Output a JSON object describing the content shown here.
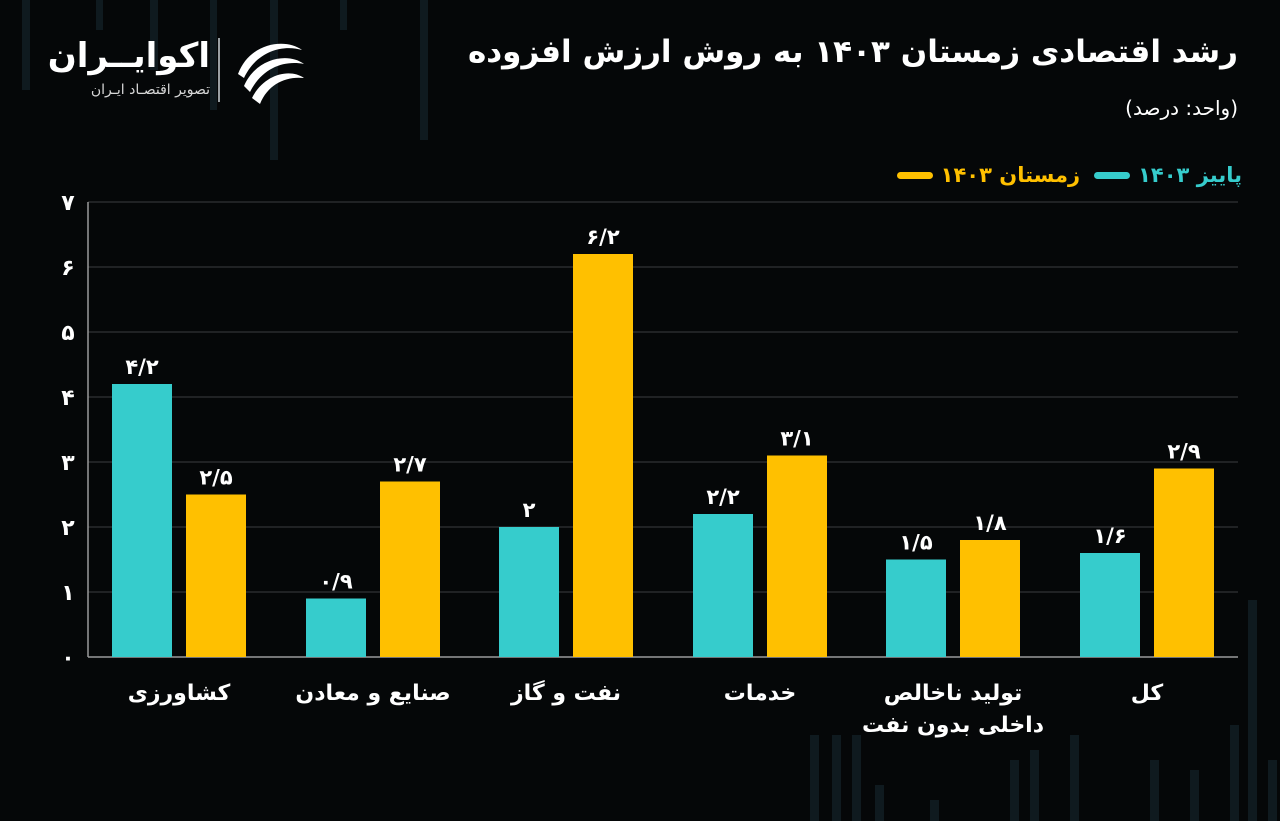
{
  "header": {
    "title": "رشد اقتصادی زمستان ۱۴۰۳ به روش ارزش افزوده",
    "unit": "(واحد: درصد)"
  },
  "logo": {
    "name": "اکوایــران",
    "subtitle": "تصویر اقتصـاد ایـران"
  },
  "colors": {
    "background": "#050708",
    "autumn": "#36CCCC",
    "winter": "#FFC000",
    "grid": "#3a3d40",
    "axis": "#9a9a9a"
  },
  "chart_data": {
    "type": "bar",
    "title": "رشد اقتصادی زمستان ۱۴۰۳ به روش ارزش افزوده",
    "ylabel": "(واحد: درصد)",
    "xlabel": "",
    "ylim": [
      0,
      7
    ],
    "yticks": [
      0,
      1,
      2,
      3,
      4,
      5,
      6,
      7
    ],
    "ytick_labels": [
      "۰",
      "۱",
      "۲",
      "۳",
      "۴",
      "۵",
      "۶",
      "۷"
    ],
    "grid": true,
    "legend_position": "top-right",
    "categories": [
      [
        "کشاورزی"
      ],
      [
        "صنایع و معادن"
      ],
      [
        "نفت و گاز"
      ],
      [
        "خدمات"
      ],
      [
        "تولید ناخالص",
        "داخلی بدون نفت"
      ],
      [
        "کل"
      ]
    ],
    "series": [
      {
        "name": "پاییز ۱۴۰۳",
        "color": "#36CCCC",
        "values": [
          4.2,
          0.9,
          2,
          2.2,
          1.5,
          1.6
        ],
        "labels": [
          "۴/۲",
          "۰/۹",
          "۲",
          "۲/۲",
          "۱/۵",
          "۱/۶"
        ]
      },
      {
        "name": "زمستان ۱۴۰۳",
        "color": "#FFC000",
        "values": [
          2.5,
          2.7,
          6.2,
          3.1,
          1.8,
          2.9
        ],
        "labels": [
          "۲/۵",
          "۲/۷",
          "۶/۲",
          "۳/۱",
          "۱/۸",
          "۲/۹"
        ]
      }
    ]
  }
}
